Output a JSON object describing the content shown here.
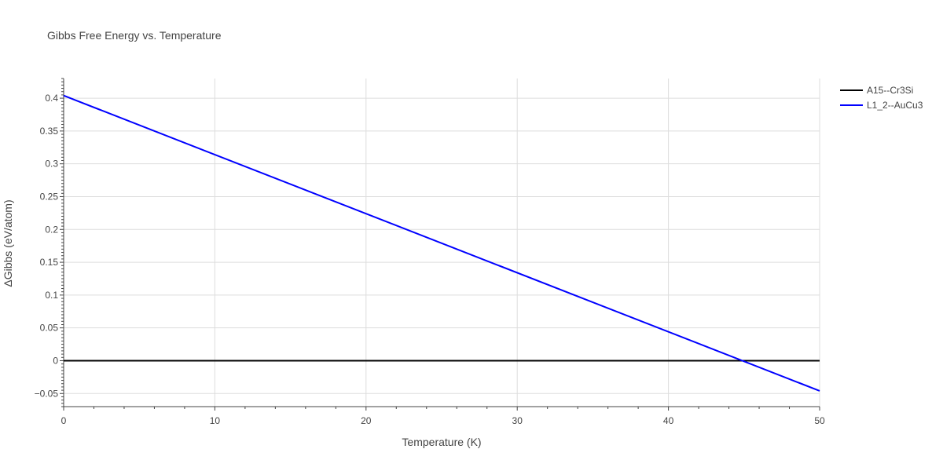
{
  "chart_data": {
    "type": "line",
    "title": "Gibbs Free Energy vs. Temperature",
    "xlabel": "Temperature (K)",
    "ylabel": "ΔGibbs (eV/atom)",
    "xlim": [
      0,
      50
    ],
    "ylim": [
      -0.07,
      0.43
    ],
    "x_ticks": [
      0,
      10,
      20,
      30,
      40,
      50
    ],
    "x_tick_labels": [
      "0",
      "10",
      "20",
      "30",
      "40",
      "50"
    ],
    "y_ticks": [
      -0.05,
      0,
      0.05,
      0.1,
      0.15,
      0.2,
      0.25,
      0.3,
      0.35,
      0.4
    ],
    "y_tick_labels": [
      "−0.05",
      "0",
      "0.05",
      "0.1",
      "0.15",
      "0.2",
      "0.25",
      "0.3",
      "0.35",
      "0.4"
    ],
    "grid": true,
    "legend_position": "top-right",
    "series": [
      {
        "name": "A15--Cr3Si",
        "color": "#000000",
        "x": [
          0,
          50
        ],
        "y": [
          0,
          0
        ]
      },
      {
        "name": "L1_2--AuCu3",
        "color": "#0000ff",
        "x": [
          0,
          50
        ],
        "y": [
          0.404,
          -0.046
        ]
      }
    ]
  }
}
